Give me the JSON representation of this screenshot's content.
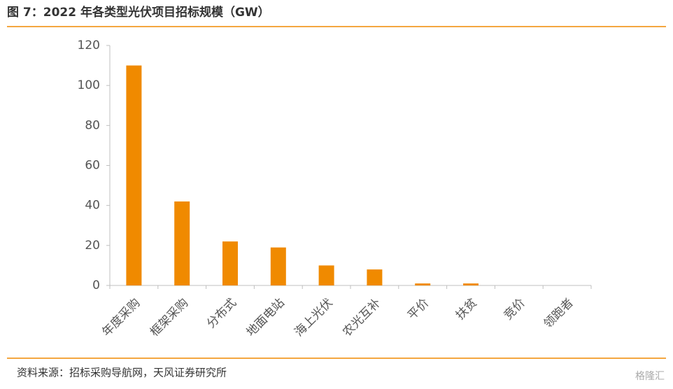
{
  "chart_data": {
    "type": "bar",
    "title": "图 7：2022 年各类型光伏项目招标规模（GW）",
    "categories": [
      "年度采购",
      "框架采购",
      "分布式",
      "地面电站",
      "海上光伏",
      "农光互补",
      "平价",
      "扶贫",
      "竞价",
      "领跑者"
    ],
    "values": [
      110,
      42,
      22,
      19,
      10,
      8,
      1,
      1,
      0,
      0
    ],
    "color": "#f08a00",
    "ylim": [
      0,
      120
    ],
    "yticks": [
      0,
      20,
      40,
      60,
      80,
      100,
      120
    ],
    "grid": false
  },
  "source": "资料来源：招标采购导航网，天风证券研究所",
  "watermark": "格隆汇"
}
